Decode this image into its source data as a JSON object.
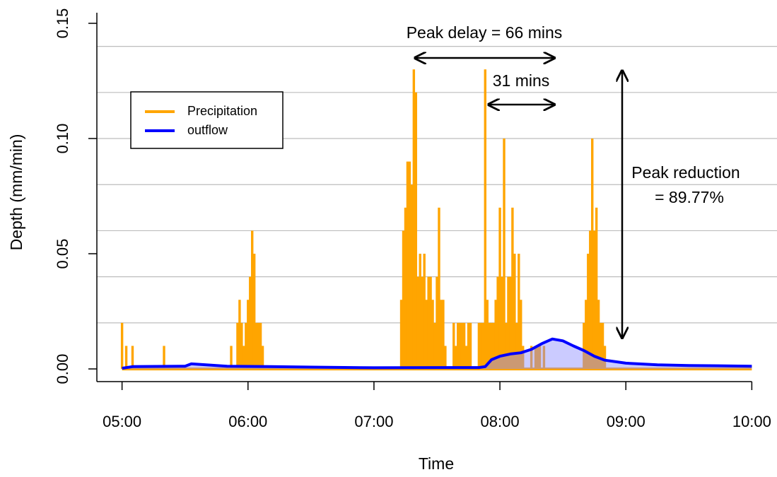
{
  "chart_data": {
    "type": "line",
    "x_label": "Time",
    "y_label": "Depth (mm/min)",
    "xlim": [
      "04:48",
      "10:12"
    ],
    "xticks": [
      "05:00",
      "06:00",
      "07:00",
      "08:00",
      "09:00",
      "10:00"
    ],
    "ylim": [
      -0.0055,
      0.1546
    ],
    "yticks": [
      {
        "value": 0,
        "label": "0.00"
      },
      0.05,
      {
        "value": 0.1,
        "label": "0.10"
      },
      0.15
    ],
    "grid_lines": [
      0.02,
      0.04,
      0.06,
      0.08,
      0.1,
      0.12,
      0.14
    ],
    "annotations": [
      "Peak delay = 66 mins",
      "31 mins",
      "Peak reduction",
      "= 89.77%"
    ],
    "series": [
      {
        "name": "Precipitation",
        "color": "#ffa500",
        "type": "bar",
        "x": [
          "05:00",
          "05:02",
          "05:05",
          "05:20",
          "05:52",
          "05:55",
          "05:56",
          "05:57",
          "05:58",
          "05:59",
          "06:00",
          "06:01",
          "06:02",
          "06:03",
          "06:04",
          "06:05",
          "06:06",
          "06:07",
          "07:13",
          "07:14",
          "07:15",
          "07:16",
          "07:17",
          "07:18",
          "07:19",
          "07:20",
          "07:21",
          "07:22",
          "07:23",
          "07:24",
          "07:25",
          "07:26",
          "07:27",
          "07:28",
          "07:29",
          "07:30",
          "07:31",
          "07:32",
          "07:33",
          "07:34",
          "07:38",
          "07:39",
          "07:40",
          "07:41",
          "07:42",
          "07:43",
          "07:44",
          "07:45",
          "07:46",
          "07:50",
          "07:51",
          "07:52",
          "07:53",
          "07:54",
          "07:55",
          "07:56",
          "07:57",
          "07:58",
          "07:59",
          "08:00",
          "08:01",
          "08:02",
          "08:03",
          "08:04",
          "08:05",
          "08:06",
          "08:07",
          "08:08",
          "08:09",
          "08:10",
          "08:11",
          "08:15",
          "08:17",
          "08:18",
          "08:19",
          "08:21",
          "08:40",
          "08:41",
          "08:42",
          "08:43",
          "08:44",
          "08:45",
          "08:46",
          "08:47",
          "08:48",
          "08:49",
          "08:50",
          "10:00"
        ],
        "values": [
          0.02,
          0.01,
          0.01,
          0.01,
          0.01,
          0.02,
          0.03,
          0.02,
          0.01,
          0.02,
          0.03,
          0.04,
          0.06,
          0.05,
          0.02,
          0.02,
          0.02,
          0.01,
          0.03,
          0.06,
          0.07,
          0.09,
          0.09,
          0.08,
          0.13,
          0.12,
          0.04,
          0.05,
          0.04,
          0.05,
          0.03,
          0.04,
          0.04,
          0.03,
          0.02,
          0.04,
          0.07,
          0.03,
          0.03,
          0.01,
          0.02,
          0.01,
          0.02,
          0.02,
          0.02,
          0.02,
          0.01,
          0.02,
          0.02,
          0.02,
          0.02,
          0.02,
          0.13,
          0.03,
          0.02,
          0.02,
          0.02,
          0.03,
          0.04,
          0.07,
          0.04,
          0.1,
          0.02,
          0.04,
          0.04,
          0.07,
          0.05,
          0.02,
          0.05,
          0.03,
          0.01,
          0.01,
          0.01,
          0.01,
          0.01,
          0.01,
          0.02,
          0.03,
          0.05,
          0.06,
          0.1,
          0.06,
          0.07,
          0.03,
          0.02,
          0.02,
          0.01,
          0
        ]
      },
      {
        "name": "outflow",
        "color": "#0000ff",
        "type": "line",
        "x": [
          "05:00",
          "05:05",
          "05:30",
          "05:33",
          "05:40",
          "05:50",
          "06:10",
          "06:30",
          "07:00",
          "07:50",
          "07:53",
          "07:56",
          "08:00",
          "08:05",
          "08:10",
          "08:15",
          "08:20",
          "08:25",
          "08:30",
          "08:35",
          "08:40",
          "08:45",
          "08:50",
          "09:00",
          "09:15",
          "09:30",
          "10:00"
        ],
        "values": [
          0.0003,
          0.001,
          0.0012,
          0.0022,
          0.0018,
          0.0012,
          0.001,
          0.0008,
          0.0005,
          0.0006,
          0.001,
          0.004,
          0.0055,
          0.0065,
          0.007,
          0.0085,
          0.011,
          0.013,
          0.0122,
          0.01,
          0.008,
          0.0055,
          0.0038,
          0.0025,
          0.0018,
          0.0015,
          0.0012
        ]
      }
    ]
  }
}
